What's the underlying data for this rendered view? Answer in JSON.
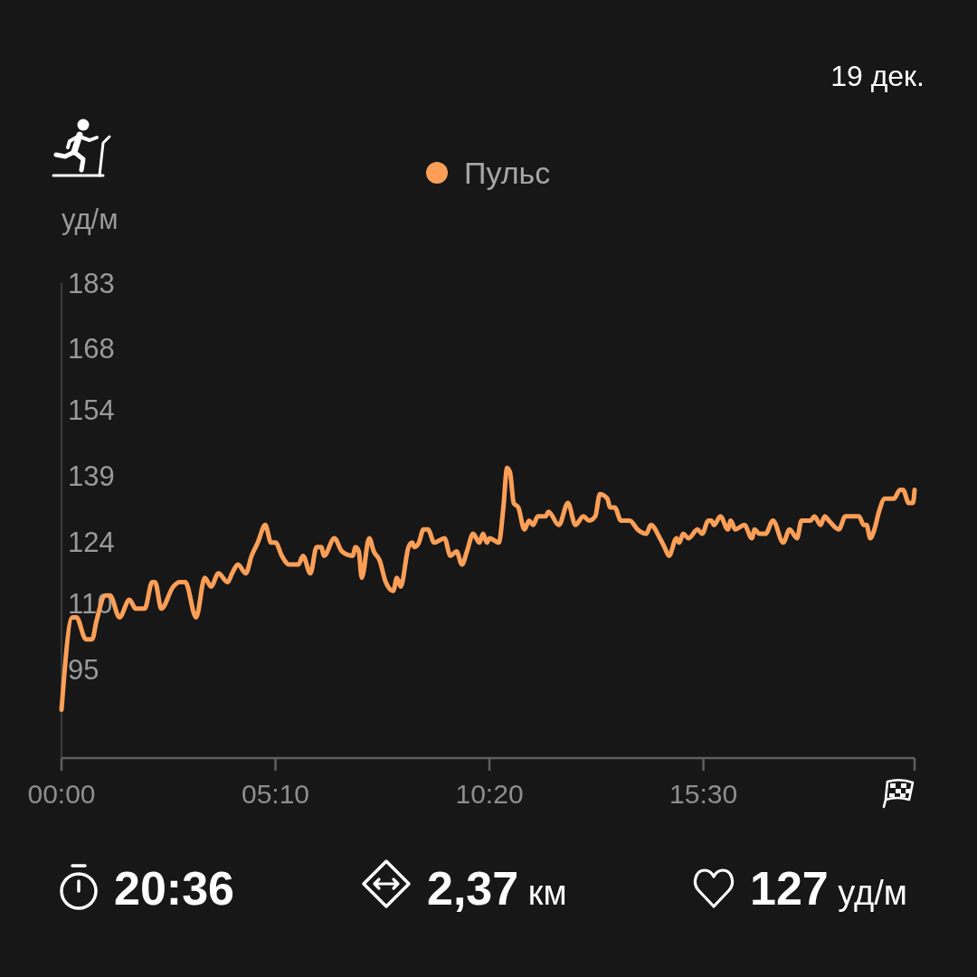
{
  "chart_data": {
    "type": "line",
    "ylabel": "уд/м",
    "annotations": [
      "19 дек.",
      "20:36",
      "2,37 км",
      "127 уд/м"
    ],
    "x": [
      0,
      0.26,
      0.36,
      0.59,
      0.74,
      0.84,
      1.06,
      1.17,
      1.4,
      1.64,
      1.79,
      2.01,
      2.19,
      2.26,
      2.41,
      2.7,
      2.85,
      2.99,
      3.25,
      3.46,
      3.61,
      3.79,
      4.01,
      4.12,
      4.26,
      4.45,
      4.59,
      4.74,
      4.92,
      5.06,
      5.17,
      5.32,
      5.5,
      5.72,
      5.83,
      6.01,
      6.16,
      6.27,
      6.34,
      6.59,
      6.77,
      7.03,
      7.1,
      7.18,
      7.25,
      7.43,
      7.54,
      7.68,
      7.83,
      8.01,
      8.1,
      8.19,
      8.38,
      8.47,
      8.52,
      8.63,
      8.74,
      8.85,
      9.0,
      9.25,
      9.39,
      9.54,
      9.67,
      9.79,
      9.94,
      10.09,
      10.18,
      10.27,
      10.34,
      10.56,
      10.67,
      10.76,
      10.83,
      10.92,
      11.03,
      11.18,
      11.29,
      11.39,
      11.5,
      11.69,
      11.76,
      12.01,
      12.23,
      12.41,
      12.6,
      12.74,
      12.89,
      13.0,
      13.18,
      13.25,
      13.36,
      13.51,
      13.72,
      13.91,
      14.12,
      14.23,
      14.45,
      14.56,
      14.67,
      14.85,
      14.92,
      15.01,
      15.14,
      15.36,
      15.47,
      15.62,
      15.69,
      15.76,
      15.91,
      16.09,
      16.16,
      16.27,
      16.49,
      16.67,
      16.74,
      16.85,
      17.0,
      17.18,
      17.43,
      17.58,
      17.76,
      17.87,
      18.09,
      18.18,
      18.33,
      18.43,
      18.53,
      18.77,
      18.93,
      19.26,
      19.37,
      19.44,
      19.53,
      19.63,
      19.74,
      19.88,
      20.1,
      20.25,
      20.32,
      20.46,
      20.56,
      20.6
    ],
    "series": [
      {
        "name": "Пульс",
        "color": "#ff9f57",
        "values": [
          86,
          107,
          107,
          102,
          102,
          106,
          112,
          112,
          107,
          111,
          109,
          109,
          115,
          115,
          109,
          114,
          115,
          115,
          107,
          116,
          114,
          117,
          115,
          117,
          119,
          117,
          121,
          124,
          128,
          124,
          124,
          121,
          119,
          119,
          121,
          117,
          123,
          123,
          121,
          125,
          122,
          121,
          123,
          122,
          116,
          125,
          122,
          120,
          115,
          113,
          116,
          114,
          123,
          124,
          123,
          124,
          127,
          127,
          124,
          125,
          121,
          122,
          119,
          122,
          126,
          124,
          126,
          124,
          125,
          124,
          132,
          141,
          140,
          133,
          132,
          127,
          129,
          128,
          130,
          130,
          131,
          128,
          133,
          128,
          130,
          129,
          130,
          135,
          134,
          132,
          132,
          129,
          129,
          127,
          126,
          128,
          125,
          123,
          121,
          125,
          124,
          126,
          125,
          127,
          126,
          129,
          129,
          128,
          130,
          127,
          129,
          127,
          128,
          125,
          127,
          126,
          126,
          129,
          124,
          127,
          125,
          129,
          129,
          130,
          128,
          130,
          129,
          127,
          130,
          130,
          128,
          128,
          125,
          127,
          131,
          134,
          134,
          136,
          136,
          133,
          133,
          136
        ]
      }
    ],
    "xlim": [
      0,
      20.6
    ],
    "xticks": [
      {
        "value": 0,
        "label": "00:00"
      },
      {
        "value": 5.1667,
        "label": "05:10"
      },
      {
        "value": 10.3333,
        "label": "10:20"
      },
      {
        "value": 15.5,
        "label": "15:30"
      },
      {
        "value": 20.6,
        "label": null
      }
    ],
    "ylim": [
      75,
      183
    ],
    "yticks": [
      95,
      110,
      124,
      139,
      154,
      168,
      183
    ],
    "legend": "top",
    "line_style": "solid"
  }
}
